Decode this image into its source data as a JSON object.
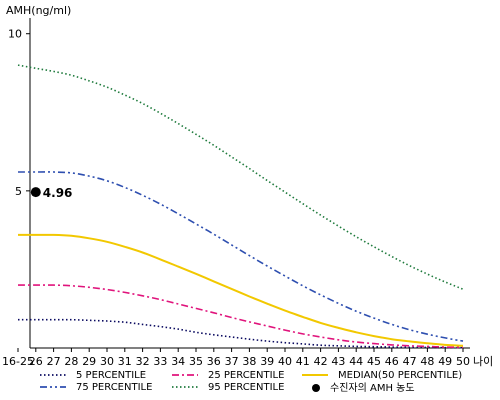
{
  "chart_data": {
    "type": "line",
    "title": "",
    "ylabel": "AMH(ng/ml)",
    "xlabel": "나이",
    "x": [
      "16-25",
      "26",
      "27",
      "28",
      "29",
      "30",
      "31",
      "32",
      "33",
      "34",
      "35",
      "36",
      "37",
      "38",
      "39",
      "40",
      "41",
      "42",
      "43",
      "44",
      "45",
      "46",
      "47",
      "48",
      "49",
      "50"
    ],
    "y_ticks": [
      5,
      10
    ],
    "ylim": [
      0,
      10.5
    ],
    "grid": false,
    "legend_position": "bottom",
    "series": [
      {
        "name": "5 PERCENTILE",
        "color": "#0a0a60",
        "style": "dotted",
        "values": [
          0.9,
          0.9,
          0.9,
          0.9,
          0.88,
          0.86,
          0.82,
          0.75,
          0.68,
          0.6,
          0.5,
          0.42,
          0.35,
          0.28,
          0.22,
          0.17,
          0.13,
          0.09,
          0.07,
          0.05,
          0.04,
          0.03,
          0.02,
          0.02,
          0.01,
          0.01
        ]
      },
      {
        "name": "25 PERCENTILE",
        "color": "#e0147c",
        "style": "dashdot",
        "values": [
          2.0,
          2.0,
          2.0,
          1.98,
          1.93,
          1.86,
          1.77,
          1.66,
          1.54,
          1.4,
          1.26,
          1.12,
          0.97,
          0.83,
          0.7,
          0.57,
          0.45,
          0.35,
          0.26,
          0.19,
          0.14,
          0.1,
          0.07,
          0.05,
          0.03,
          0.02
        ]
      },
      {
        "name": "MEDIAN(50 PERCENTILE)",
        "color": "#f2c800",
        "style": "solid",
        "values": [
          3.6,
          3.6,
          3.6,
          3.57,
          3.49,
          3.38,
          3.22,
          3.04,
          2.82,
          2.59,
          2.36,
          2.12,
          1.88,
          1.64,
          1.41,
          1.19,
          0.99,
          0.8,
          0.64,
          0.5,
          0.38,
          0.28,
          0.21,
          0.15,
          0.1,
          0.07
        ]
      },
      {
        "name": "75 PERCENTILE",
        "color": "#2e4fb0",
        "style": "dashdotdot",
        "values": [
          5.6,
          5.6,
          5.6,
          5.57,
          5.47,
          5.32,
          5.11,
          4.86,
          4.58,
          4.27,
          3.95,
          3.62,
          3.28,
          2.94,
          2.61,
          2.29,
          1.98,
          1.69,
          1.42,
          1.17,
          0.95,
          0.75,
          0.58,
          0.44,
          0.32,
          0.22
        ]
      },
      {
        "name": "95 PERCENTILE",
        "color": "#1e7a3c",
        "style": "dotted",
        "values": [
          9.0,
          8.9,
          8.8,
          8.68,
          8.5,
          8.3,
          8.05,
          7.78,
          7.47,
          7.14,
          6.8,
          6.45,
          6.08,
          5.71,
          5.33,
          4.96,
          4.59,
          4.23,
          3.88,
          3.54,
          3.22,
          2.91,
          2.62,
          2.35,
          2.1,
          1.87
        ]
      }
    ],
    "marker": {
      "name": "수진자의 AMH 농도",
      "x": "26",
      "value": 4.96,
      "label": "4.96",
      "color": "#000000"
    }
  }
}
